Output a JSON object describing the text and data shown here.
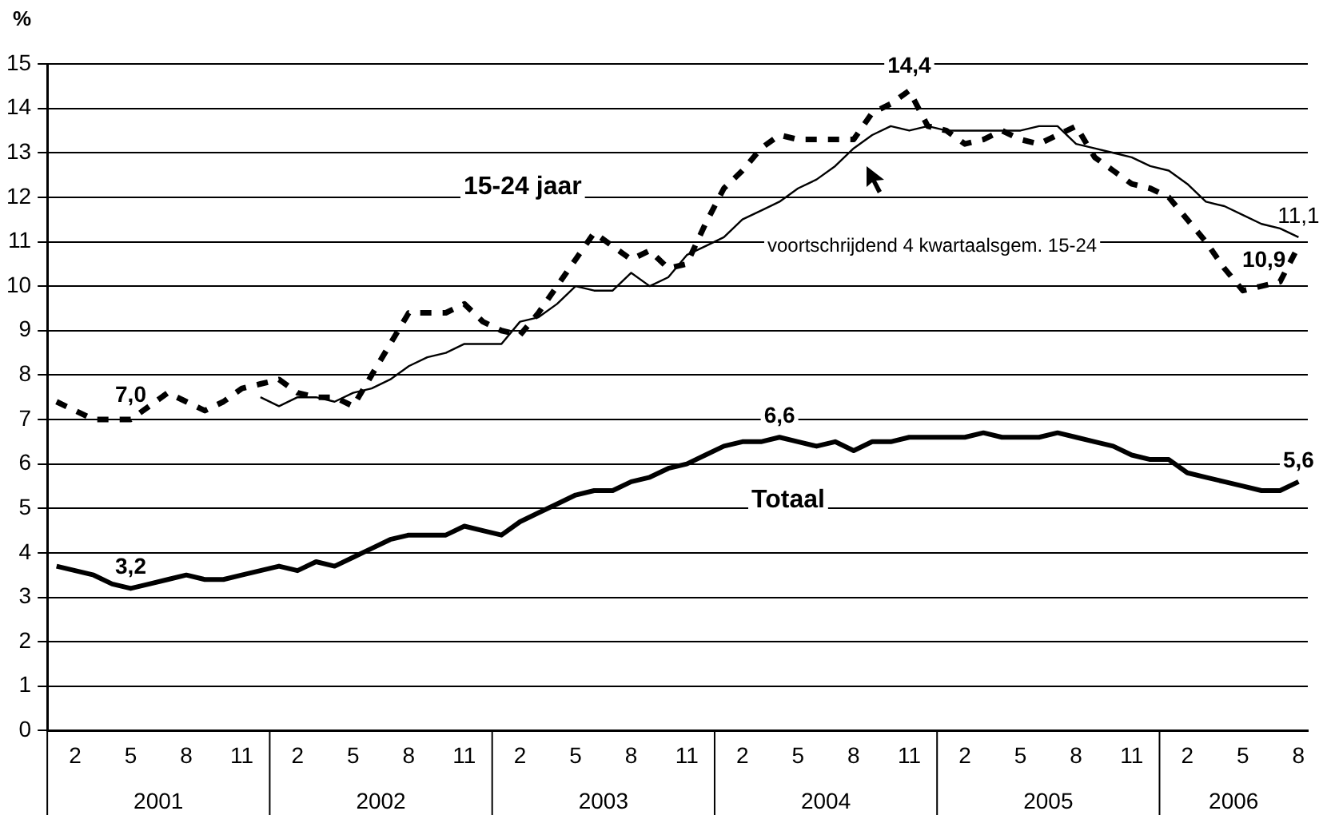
{
  "chart_data": {
    "type": "line",
    "ylabel": "%",
    "categories": [
      null,
      "2",
      null,
      null,
      "5",
      null,
      null,
      "8",
      null,
      null,
      "11",
      null,
      null,
      "2",
      null,
      null,
      "5",
      null,
      null,
      "8",
      null,
      null,
      "11",
      null,
      null,
      "2",
      null,
      null,
      "5",
      null,
      null,
      "8",
      null,
      null,
      "11",
      null,
      null,
      "2",
      null,
      null,
      "5",
      null,
      null,
      "8",
      null,
      null,
      "11",
      null,
      null,
      "2",
      null,
      null,
      "5",
      null,
      null,
      "8",
      null,
      null,
      "11",
      null,
      null,
      "2",
      null,
      null,
      "5",
      null,
      null,
      "8"
    ],
    "series": [
      {
        "name": "15-24 jaar",
        "color": "#000000",
        "line_style": "dashed",
        "values": [
          7.4,
          7.2,
          7.0,
          7.0,
          7.0,
          7.3,
          7.6,
          7.4,
          7.2,
          7.4,
          7.7,
          7.8,
          7.9,
          7.6,
          7.5,
          7.5,
          7.3,
          8.0,
          8.7,
          9.4,
          9.4,
          9.4,
          9.6,
          9.2,
          9.0,
          8.9,
          9.4,
          10.0,
          10.6,
          11.2,
          10.9,
          10.6,
          10.8,
          10.4,
          10.5,
          11.4,
          12.2,
          12.6,
          13.1,
          13.4,
          13.3,
          13.3,
          13.3,
          13.3,
          13.9,
          14.1,
          14.4,
          13.6,
          13.5,
          13.2,
          13.3,
          13.5,
          13.3,
          13.2,
          13.4,
          13.6,
          12.9,
          12.6,
          12.3,
          12.2,
          12.0,
          11.5,
          11.0,
          10.4,
          9.9,
          10.0,
          10.1,
          10.9
        ],
        "value_labels": [
          null,
          null,
          null,
          null,
          "7,0",
          null,
          null,
          null,
          null,
          null,
          null,
          null,
          null,
          null,
          null,
          null,
          null,
          null,
          null,
          null,
          null,
          null,
          null,
          null,
          null,
          null,
          null,
          null,
          null,
          null,
          null,
          null,
          null,
          null,
          null,
          null,
          null,
          null,
          null,
          null,
          null,
          null,
          null,
          null,
          null,
          null,
          "14,4",
          null,
          null,
          null,
          null,
          null,
          null,
          null,
          null,
          null,
          null,
          null,
          null,
          null,
          null,
          null,
          null,
          null,
          null,
          null,
          null,
          "10,9"
        ]
      },
      {
        "name": "voortschrijdend 4 kwartaalsgem. 15-24",
        "color": "#000000",
        "line_style": "solid",
        "values": [
          null,
          null,
          null,
          null,
          null,
          null,
          null,
          null,
          null,
          null,
          null,
          7.5,
          7.3,
          7.5,
          7.5,
          7.4,
          7.6,
          7.7,
          7.9,
          8.2,
          8.4,
          8.5,
          8.7,
          8.7,
          8.7,
          9.2,
          9.3,
          9.6,
          10.0,
          9.9,
          9.9,
          10.3,
          10.0,
          10.2,
          10.7,
          10.9,
          11.1,
          11.5,
          11.7,
          11.9,
          12.2,
          12.4,
          12.7,
          13.1,
          13.4,
          13.6,
          13.5,
          13.6,
          13.5,
          13.5,
          13.5,
          13.5,
          13.5,
          13.6,
          13.6,
          13.2,
          13.1,
          13.0,
          12.9,
          12.7,
          12.6,
          12.3,
          11.9,
          11.8,
          11.6,
          11.4,
          11.3,
          11.1
        ],
        "value_labels": [
          null,
          null,
          null,
          null,
          null,
          null,
          null,
          null,
          null,
          null,
          null,
          null,
          null,
          null,
          null,
          null,
          null,
          null,
          null,
          null,
          null,
          null,
          null,
          null,
          null,
          null,
          null,
          null,
          null,
          null,
          null,
          null,
          null,
          null,
          null,
          null,
          null,
          null,
          null,
          null,
          null,
          null,
          null,
          null,
          null,
          null,
          null,
          null,
          null,
          null,
          null,
          null,
          null,
          null,
          null,
          null,
          null,
          null,
          null,
          null,
          null,
          null,
          null,
          null,
          null,
          null,
          null,
          "11,1"
        ]
      },
      {
        "name": "Totaal",
        "color": "#000000",
        "line_style": "solid",
        "values": [
          3.7,
          3.6,
          3.5,
          3.3,
          3.2,
          3.3,
          3.4,
          3.5,
          3.4,
          3.4,
          3.5,
          3.6,
          3.7,
          3.6,
          3.8,
          3.7,
          3.9,
          4.1,
          4.3,
          4.4,
          4.4,
          4.4,
          4.6,
          4.5,
          4.4,
          4.7,
          4.9,
          5.1,
          5.3,
          5.4,
          5.4,
          5.6,
          5.7,
          5.9,
          6.0,
          6.2,
          6.4,
          6.5,
          6.5,
          6.6,
          6.5,
          6.4,
          6.5,
          6.3,
          6.5,
          6.5,
          6.6,
          6.6,
          6.6,
          6.6,
          6.7,
          6.6,
          6.6,
          6.6,
          6.7,
          6.6,
          6.5,
          6.4,
          6.2,
          6.1,
          6.1,
          5.8,
          5.7,
          5.6,
          5.5,
          5.4,
          5.4,
          5.6
        ],
        "value_labels": [
          null,
          null,
          null,
          null,
          "3,2",
          null,
          null,
          null,
          null,
          null,
          null,
          null,
          null,
          null,
          null,
          null,
          null,
          null,
          null,
          null,
          null,
          null,
          null,
          null,
          null,
          null,
          null,
          null,
          null,
          null,
          null,
          null,
          null,
          null,
          null,
          null,
          null,
          null,
          null,
          "6,6",
          null,
          null,
          null,
          null,
          null,
          null,
          null,
          null,
          null,
          null,
          null,
          null,
          null,
          null,
          null,
          null,
          null,
          null,
          null,
          null,
          null,
          null,
          null,
          null,
          null,
          null,
          null,
          "5,6"
        ]
      }
    ],
    "annotations": [
      "2001",
      "2002",
      "2003",
      "2004",
      "2005",
      "2006"
    ],
    "ylim": [
      0,
      15
    ],
    "yticks": [
      0,
      1,
      2,
      3,
      4,
      5,
      6,
      7,
      8,
      9,
      10,
      11,
      12,
      13,
      14,
      15
    ],
    "grid": "y",
    "legend": false,
    "marker": "none"
  }
}
